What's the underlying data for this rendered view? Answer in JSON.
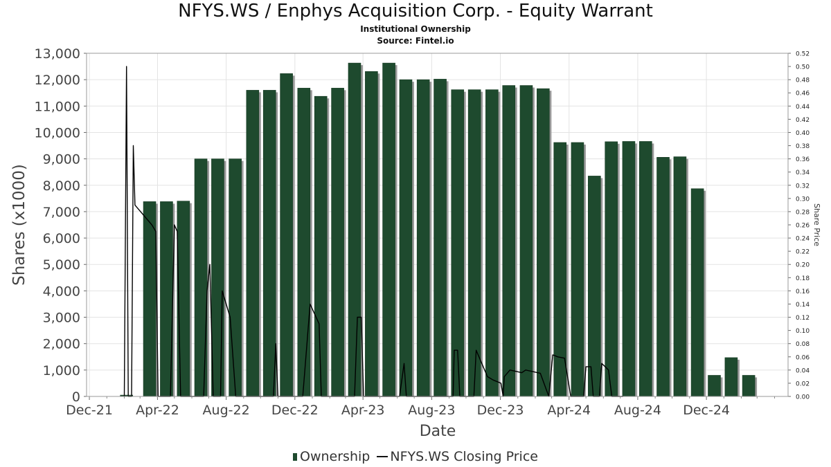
{
  "title": "NFYS.WS / Enphys Acquisition Corp. - Equity Warrant",
  "subtitle": "Institutional Ownership",
  "source": "Source: Fintel.io",
  "legend": {
    "ownership": "Ownership",
    "price": "NFYS.WS Closing Price"
  },
  "colors": {
    "bar": "#1e4a2e",
    "bar_shadow": "#9a9a9a",
    "line": "#000000",
    "grid": "#e3e3e3"
  },
  "chart_data": {
    "type": "bar",
    "xlabel": "Date",
    "ylabel": "Shares (x1000)",
    "y2label": "Share Price",
    "ylim": [
      0,
      13000
    ],
    "y2lim": [
      0,
      0.52
    ],
    "yticks": [
      "0",
      "1,000",
      "2,000",
      "3,000",
      "4,000",
      "5,000",
      "6,000",
      "7,000",
      "8,000",
      "9,000",
      "10,000",
      "11,000",
      "12,000",
      "13,000"
    ],
    "y2ticks": [
      "0.00",
      "0.02",
      "0.04",
      "0.06",
      "0.08",
      "0.10",
      "0.12",
      "0.14",
      "0.16",
      "0.18",
      "0.20",
      "0.22",
      "0.24",
      "0.26",
      "0.28",
      "0.30",
      "0.32",
      "0.34",
      "0.36",
      "0.38",
      "0.40",
      "0.42",
      "0.44",
      "0.46",
      "0.48",
      "0.50",
      "0.52"
    ],
    "xticks": [
      {
        "label": "Dec-21",
        "date": "2021-12-01"
      },
      {
        "label": "Apr-22",
        "date": "2022-04-01"
      },
      {
        "label": "Aug-22",
        "date": "2022-08-01"
      },
      {
        "label": "Dec-22",
        "date": "2022-12-01"
      },
      {
        "label": "Apr-23",
        "date": "2023-04-01"
      },
      {
        "label": "Aug-23",
        "date": "2023-08-01"
      },
      {
        "label": "Dec-23",
        "date": "2023-12-01"
      },
      {
        "label": "Apr-24",
        "date": "2024-04-01"
      },
      {
        "label": "Aug-24",
        "date": "2024-08-01"
      },
      {
        "label": "Dec-24",
        "date": "2024-12-01"
      }
    ],
    "xlim": [
      "2021-11-26",
      "2025-04-25"
    ],
    "series": [
      {
        "name": "Ownership",
        "type": "bar",
        "points": [
          {
            "date": "2022-02-05",
            "value": 50
          },
          {
            "date": "2022-03-18",
            "value": 7380
          },
          {
            "date": "2022-04-17",
            "value": 7380
          },
          {
            "date": "2022-05-17",
            "value": 7400
          },
          {
            "date": "2022-06-17",
            "value": 9000
          },
          {
            "date": "2022-07-17",
            "value": 9000
          },
          {
            "date": "2022-08-17",
            "value": 9000
          },
          {
            "date": "2022-09-17",
            "value": 11600
          },
          {
            "date": "2022-10-17",
            "value": 11600
          },
          {
            "date": "2022-11-16",
            "value": 12230
          },
          {
            "date": "2022-12-17",
            "value": 11680
          },
          {
            "date": "2023-01-16",
            "value": 11370
          },
          {
            "date": "2023-02-15",
            "value": 11680
          },
          {
            "date": "2023-03-17",
            "value": 12630
          },
          {
            "date": "2023-04-16",
            "value": 12310
          },
          {
            "date": "2023-05-17",
            "value": 12630
          },
          {
            "date": "2023-06-16",
            "value": 12000
          },
          {
            "date": "2023-07-17",
            "value": 12000
          },
          {
            "date": "2023-08-16",
            "value": 12020
          },
          {
            "date": "2023-09-16",
            "value": 11620
          },
          {
            "date": "2023-10-16",
            "value": 11620
          },
          {
            "date": "2023-11-16",
            "value": 11620
          },
          {
            "date": "2023-12-16",
            "value": 11780
          },
          {
            "date": "2024-01-16",
            "value": 11780
          },
          {
            "date": "2024-02-15",
            "value": 11660
          },
          {
            "date": "2024-03-16",
            "value": 9620
          },
          {
            "date": "2024-04-16",
            "value": 9620
          },
          {
            "date": "2024-05-16",
            "value": 8350
          },
          {
            "date": "2024-06-15",
            "value": 9650
          },
          {
            "date": "2024-07-16",
            "value": 9660
          },
          {
            "date": "2024-08-15",
            "value": 9660
          },
          {
            "date": "2024-09-15",
            "value": 9060
          },
          {
            "date": "2024-10-15",
            "value": 9080
          },
          {
            "date": "2024-11-15",
            "value": 7870
          },
          {
            "date": "2024-12-15",
            "value": 800
          },
          {
            "date": "2025-01-14",
            "value": 1470
          },
          {
            "date": "2025-02-14",
            "value": 800
          }
        ]
      },
      {
        "name": "NFYS.WS Closing Price",
        "type": "line",
        "points": [
          {
            "date": "2022-02-01",
            "value": 0.0
          },
          {
            "date": "2022-02-05",
            "value": 0.5
          },
          {
            "date": "2022-02-08",
            "value": 0.0
          },
          {
            "date": "2022-02-14",
            "value": 0.0
          },
          {
            "date": "2022-02-17",
            "value": 0.38
          },
          {
            "date": "2022-02-20",
            "value": 0.29
          },
          {
            "date": "2022-03-22",
            "value": 0.26
          },
          {
            "date": "2022-03-29",
            "value": 0.25
          },
          {
            "date": "2022-04-02",
            "value": 0.0
          },
          {
            "date": "2022-04-24",
            "value": 0.0
          },
          {
            "date": "2022-05-01",
            "value": 0.26
          },
          {
            "date": "2022-05-06",
            "value": 0.25
          },
          {
            "date": "2022-05-12",
            "value": 0.0
          },
          {
            "date": "2022-06-22",
            "value": 0.0
          },
          {
            "date": "2022-06-28",
            "value": 0.16
          },
          {
            "date": "2022-07-03",
            "value": 0.2
          },
          {
            "date": "2022-07-09",
            "value": 0.0
          },
          {
            "date": "2022-07-22",
            "value": 0.0
          },
          {
            "date": "2022-07-25",
            "value": 0.16
          },
          {
            "date": "2022-08-08",
            "value": 0.12
          },
          {
            "date": "2022-08-18",
            "value": 0.0
          },
          {
            "date": "2022-10-24",
            "value": 0.0
          },
          {
            "date": "2022-10-28",
            "value": 0.08
          },
          {
            "date": "2022-11-01",
            "value": 0.0
          },
          {
            "date": "2022-12-15",
            "value": 0.0
          },
          {
            "date": "2022-12-28",
            "value": 0.14
          },
          {
            "date": "2023-01-13",
            "value": 0.11
          },
          {
            "date": "2023-01-17",
            "value": 0.0
          },
          {
            "date": "2023-03-17",
            "value": 0.0
          },
          {
            "date": "2023-03-22",
            "value": 0.12
          },
          {
            "date": "2023-03-29",
            "value": 0.12
          },
          {
            "date": "2023-04-02",
            "value": 0.0
          },
          {
            "date": "2023-06-05",
            "value": 0.0
          },
          {
            "date": "2023-06-13",
            "value": 0.05
          },
          {
            "date": "2023-06-17",
            "value": 0.0
          },
          {
            "date": "2023-09-08",
            "value": 0.0
          },
          {
            "date": "2023-09-10",
            "value": 0.07
          },
          {
            "date": "2023-09-16",
            "value": 0.07
          },
          {
            "date": "2023-09-20",
            "value": 0.0
          },
          {
            "date": "2023-10-15",
            "value": 0.0
          },
          {
            "date": "2023-10-19",
            "value": 0.07
          },
          {
            "date": "2023-11-08",
            "value": 0.03
          },
          {
            "date": "2023-11-18",
            "value": 0.025
          },
          {
            "date": "2023-12-02",
            "value": 0.02
          },
          {
            "date": "2023-12-06",
            "value": 0.0
          },
          {
            "date": "2023-12-08",
            "value": 0.03
          },
          {
            "date": "2023-12-18",
            "value": 0.04
          },
          {
            "date": "2024-01-08",
            "value": 0.036
          },
          {
            "date": "2024-01-15",
            "value": 0.04
          },
          {
            "date": "2024-02-10",
            "value": 0.035
          },
          {
            "date": "2024-02-25",
            "value": 0.0
          },
          {
            "date": "2024-03-03",
            "value": 0.063
          },
          {
            "date": "2024-03-12",
            "value": 0.06
          },
          {
            "date": "2024-03-24",
            "value": 0.058
          },
          {
            "date": "2024-04-04",
            "value": 0.0
          },
          {
            "date": "2024-04-27",
            "value": 0.0
          },
          {
            "date": "2024-05-01",
            "value": 0.045
          },
          {
            "date": "2024-05-10",
            "value": 0.045
          },
          {
            "date": "2024-05-14",
            "value": 0.0
          },
          {
            "date": "2024-05-25",
            "value": 0.0
          },
          {
            "date": "2024-05-29",
            "value": 0.05
          },
          {
            "date": "2024-06-10",
            "value": 0.04
          },
          {
            "date": "2024-06-16",
            "value": 0.0
          },
          {
            "date": "2024-07-06",
            "value": 0.0
          }
        ]
      }
    ],
    "grid": true
  }
}
